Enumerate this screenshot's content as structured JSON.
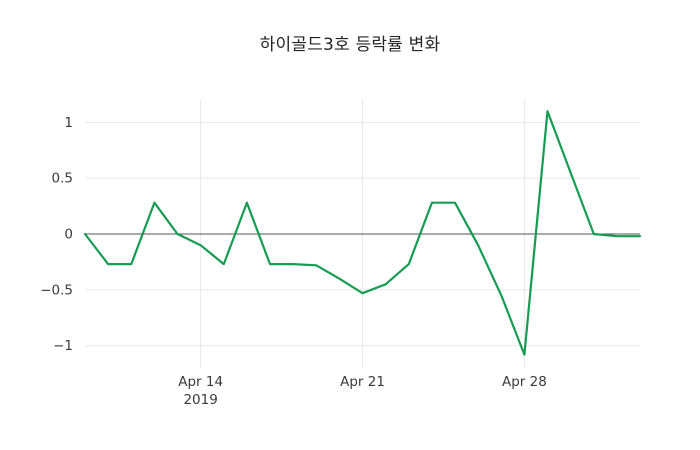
{
  "chart_data": {
    "type": "line",
    "title": "하이골드3호 등락률 변화",
    "xlabel": "",
    "ylabel": "",
    "x": [
      "2019-04-09",
      "2019-04-10",
      "2019-04-11",
      "2019-04-12",
      "2019-04-13",
      "2019-04-14",
      "2019-04-15",
      "2019-04-16",
      "2019-04-17",
      "2019-04-18",
      "2019-04-19",
      "2019-04-20",
      "2019-04-21",
      "2019-04-22",
      "2019-04-23",
      "2019-04-24",
      "2019-04-25",
      "2019-04-26",
      "2019-04-27",
      "2019-04-28",
      "2019-04-29",
      "2019-04-30",
      "2019-05-01",
      "2019-05-02",
      "2019-05-03"
    ],
    "y": [
      0.0,
      -0.27,
      -0.27,
      0.28,
      0.0,
      -0.1,
      -0.27,
      0.28,
      -0.27,
      -0.27,
      -0.28,
      -0.4,
      -0.53,
      -0.45,
      -0.27,
      0.28,
      0.28,
      -0.1,
      -0.55,
      -1.08,
      1.1,
      0.55,
      0.0,
      -0.02,
      -0.02
    ],
    "x_ticks": [
      {
        "label": "Apr 14",
        "date": "2019-04-14"
      },
      {
        "label": "Apr 21",
        "date": "2019-04-21"
      },
      {
        "label": "Apr 28",
        "date": "2019-04-28"
      }
    ],
    "x_year_label": "2019",
    "y_ticks": [
      1,
      0.5,
      0,
      -0.5,
      -1
    ],
    "y_tick_labels": [
      "1",
      "0.5",
      "0",
      "−0.5",
      "−1"
    ],
    "ylim": [
      -1.2,
      1.2
    ],
    "grid": true,
    "legend": "none",
    "line_color": "#169c52",
    "colors": {
      "grid": "#e8e8e8",
      "zero_line": "#555555",
      "tick_label": "#3b3b3b",
      "title": "#242424",
      "background": "#ffffff"
    }
  }
}
